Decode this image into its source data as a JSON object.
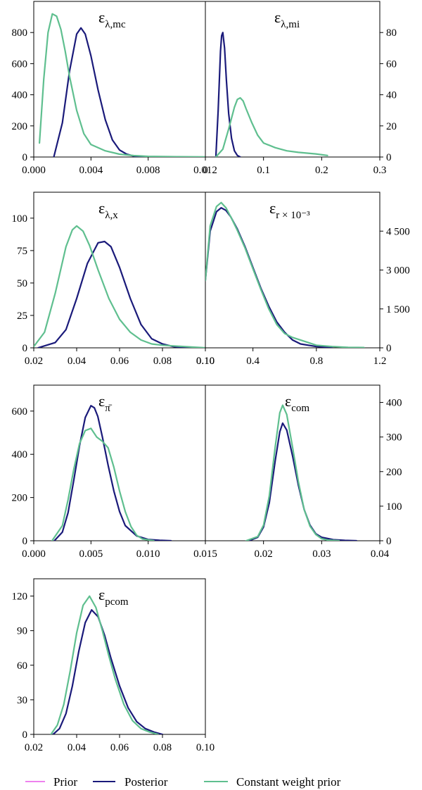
{
  "colors": {
    "prior": "#ee82ee",
    "posterior": "#1a1a7a",
    "constant_weight_prior": "#5fbf8f"
  },
  "legend": [
    {
      "key": "prior",
      "label": "Prior"
    },
    {
      "key": "posterior",
      "label": "Posterior"
    },
    {
      "key": "constant_weight_prior",
      "label": "Constant weight prior"
    }
  ],
  "chart_data": [
    {
      "type": "line",
      "title_base": "ε",
      "title_sub": "λ,mc",
      "xlim": [
        0,
        0.012
      ],
      "ylim": [
        0,
        1000
      ],
      "xticks": [
        0,
        0.004,
        0.008,
        0.012
      ],
      "xtick_labels": [
        "0.000",
        "0.004",
        "0.008",
        "0.012"
      ],
      "yticks": [
        0,
        200,
        400,
        600,
        800
      ],
      "ytick_labels": [
        "0",
        "200",
        "400",
        "600",
        "800"
      ],
      "series": [
        {
          "name": "Posterior",
          "key": "posterior",
          "x": [
            0.0014,
            0.002,
            0.0025,
            0.003,
            0.0033,
            0.0036,
            0.004,
            0.0045,
            0.005,
            0.0055,
            0.006,
            0.0065,
            0.007,
            0.0075,
            0.008
          ],
          "y": [
            0,
            220,
            550,
            790,
            830,
            790,
            650,
            430,
            240,
            110,
            45,
            18,
            6,
            2,
            0
          ]
        },
        {
          "name": "Constant weight prior",
          "key": "constant_weight_prior",
          "x": [
            0.0004,
            0.0007,
            0.001,
            0.0013,
            0.0016,
            0.0019,
            0.0022,
            0.0025,
            0.003,
            0.0035,
            0.004,
            0.005,
            0.006,
            0.007,
            0.008,
            0.01,
            0.012
          ],
          "y": [
            90,
            500,
            800,
            920,
            905,
            820,
            680,
            520,
            300,
            150,
            80,
            40,
            18,
            9,
            4,
            2,
            1
          ]
        }
      ]
    },
    {
      "type": "line",
      "title_base": "ε",
      "title_sub": "λ,mi",
      "xlim": [
        0,
        0.3
      ],
      "ylim": [
        0,
        100
      ],
      "xticks": [
        0,
        0.1,
        0.2,
        0.3
      ],
      "xtick_labels": [
        "0",
        "0.1",
        "0.2",
        "0.3"
      ],
      "yticks": [
        0,
        20,
        40,
        60,
        80
      ],
      "ytick_labels": [
        "0",
        "20",
        "40",
        "60",
        "80"
      ],
      "series": [
        {
          "name": "Posterior",
          "key": "posterior",
          "x": [
            0.018,
            0.022,
            0.026,
            0.028,
            0.03,
            0.033,
            0.036,
            0.04,
            0.045,
            0.05,
            0.055,
            0.06
          ],
          "y": [
            0,
            30,
            68,
            78,
            80,
            70,
            50,
            28,
            12,
            4,
            1,
            0
          ]
        },
        {
          "name": "Constant weight prior",
          "key": "constant_weight_prior",
          "x": [
            0.018,
            0.03,
            0.04,
            0.05,
            0.055,
            0.06,
            0.065,
            0.07,
            0.08,
            0.09,
            0.1,
            0.12,
            0.14,
            0.16,
            0.19,
            0.21
          ],
          "y": [
            0,
            5,
            18,
            32,
            37,
            38,
            36,
            31,
            22,
            14,
            9,
            6,
            4,
            3,
            2,
            1
          ]
        }
      ]
    },
    {
      "type": "line",
      "title_base": "ε",
      "title_sub": "λ,x",
      "xlim": [
        0.02,
        0.1
      ],
      "ylim": [
        0,
        120
      ],
      "xticks": [
        0.02,
        0.04,
        0.06,
        0.08,
        0.1
      ],
      "xtick_labels": [
        "0.02",
        "0.04",
        "0.06",
        "0.08",
        "0.10"
      ],
      "yticks": [
        0,
        25,
        50,
        75,
        100
      ],
      "ytick_labels": [
        "0",
        "25",
        "50",
        "75",
        "100"
      ],
      "series": [
        {
          "name": "Posterior",
          "key": "posterior",
          "x": [
            0.022,
            0.03,
            0.035,
            0.04,
            0.045,
            0.05,
            0.053,
            0.056,
            0.06,
            0.065,
            0.07,
            0.075,
            0.08,
            0.085,
            0.09,
            0.095
          ],
          "y": [
            0,
            4,
            14,
            38,
            65,
            81,
            82,
            78,
            62,
            38,
            18,
            7,
            3,
            1,
            0,
            0
          ]
        },
        {
          "name": "Constant weight prior",
          "key": "constant_weight_prior",
          "x": [
            0.02,
            0.025,
            0.03,
            0.035,
            0.038,
            0.04,
            0.043,
            0.046,
            0.05,
            0.055,
            0.06,
            0.065,
            0.07,
            0.075,
            0.08,
            0.09,
            0.1
          ],
          "y": [
            1,
            12,
            42,
            78,
            91,
            94,
            90,
            79,
            60,
            38,
            22,
            12,
            6,
            3,
            2,
            1,
            0
          ]
        }
      ]
    },
    {
      "type": "line",
      "title_base": "ε",
      "title_sub": "r × 10⁻³",
      "xlim": [
        0.1,
        1.2
      ],
      "ylim": [
        0,
        6000
      ],
      "xticks": [
        0.1,
        0.4,
        0.8,
        1.2
      ],
      "xtick_labels": [
        "0.10",
        "0.4",
        "0.8",
        "1.2"
      ],
      "yticks": [
        0,
        1500,
        3000,
        4500
      ],
      "ytick_labels": [
        "0",
        "1 500",
        "3 000",
        "4 500"
      ],
      "series": [
        {
          "name": "Posterior",
          "key": "posterior",
          "x": [
            0.1,
            0.13,
            0.17,
            0.2,
            0.23,
            0.26,
            0.3,
            0.35,
            0.4,
            0.45,
            0.5,
            0.55,
            0.6,
            0.65,
            0.7,
            0.8,
            0.9
          ],
          "y": [
            2600,
            4500,
            5250,
            5400,
            5300,
            5050,
            4600,
            3900,
            3100,
            2300,
            1600,
            1000,
            600,
            300,
            150,
            50,
            10
          ]
        },
        {
          "name": "Constant weight prior",
          "key": "constant_weight_prior",
          "x": [
            0.1,
            0.13,
            0.17,
            0.2,
            0.23,
            0.26,
            0.3,
            0.35,
            0.4,
            0.45,
            0.5,
            0.55,
            0.6,
            0.65,
            0.7,
            0.8,
            0.9,
            1.0,
            1.1
          ],
          "y": [
            2600,
            4700,
            5450,
            5600,
            5400,
            5050,
            4550,
            3850,
            3050,
            2250,
            1500,
            900,
            550,
            400,
            300,
            100,
            50,
            20,
            10
          ]
        }
      ]
    },
    {
      "type": "line",
      "title_base": "ε",
      "title_sub": "π̄",
      "xlim": [
        0,
        0.015
      ],
      "ylim": [
        0,
        720
      ],
      "xticks": [
        0,
        0.005,
        0.01,
        0.015
      ],
      "xtick_labels": [
        "0.000",
        "0.005",
        "0.010",
        "0.015"
      ],
      "yticks": [
        0,
        200,
        400,
        600
      ],
      "ytick_labels": [
        "0",
        "200",
        "400",
        "600"
      ],
      "series": [
        {
          "name": "Posterior",
          "key": "posterior",
          "x": [
            0.0018,
            0.0025,
            0.003,
            0.0035,
            0.004,
            0.0045,
            0.005,
            0.0053,
            0.0056,
            0.006,
            0.0065,
            0.007,
            0.0075,
            0.008,
            0.009,
            0.01,
            0.011,
            0.012
          ],
          "y": [
            0,
            40,
            130,
            280,
            440,
            570,
            625,
            615,
            575,
            480,
            350,
            230,
            135,
            70,
            22,
            6,
            2,
            0
          ]
        },
        {
          "name": "Constant weight prior",
          "key": "constant_weight_prior",
          "x": [
            0.0016,
            0.0025,
            0.003,
            0.0035,
            0.004,
            0.0045,
            0.005,
            0.0055,
            0.006,
            0.0065,
            0.007,
            0.0075,
            0.008,
            0.0085,
            0.009,
            0.0095,
            0.0105
          ],
          "y": [
            0,
            70,
            190,
            330,
            450,
            510,
            520,
            480,
            460,
            430,
            340,
            230,
            135,
            65,
            25,
            8,
            0
          ]
        }
      ]
    },
    {
      "type": "line",
      "title_base": "ε",
      "title_sub": "com",
      "xlim": [
        0.01,
        0.04
      ],
      "ylim": [
        0,
        450
      ],
      "xticks": [
        0.02,
        0.03,
        0.04
      ],
      "xtick_labels": [
        "0.02",
        "0.03",
        "0.04"
      ],
      "yticks": [
        0,
        100,
        200,
        300,
        400
      ],
      "ytick_labels": [
        "0",
        "100",
        "200",
        "300",
        "400"
      ],
      "series": [
        {
          "name": "Posterior",
          "key": "posterior",
          "x": [
            0.0175,
            0.019,
            0.02,
            0.021,
            0.022,
            0.0228,
            0.0233,
            0.024,
            0.025,
            0.026,
            0.027,
            0.028,
            0.029,
            0.03,
            0.032,
            0.034,
            0.036
          ],
          "y": [
            0,
            10,
            40,
            110,
            230,
            315,
            340,
            320,
            245,
            160,
            90,
            45,
            20,
            10,
            3,
            1,
            0
          ]
        },
        {
          "name": "Constant weight prior",
          "key": "constant_weight_prior",
          "x": [
            0.017,
            0.019,
            0.02,
            0.021,
            0.022,
            0.0228,
            0.0233,
            0.024,
            0.025,
            0.026,
            0.027,
            0.028,
            0.029,
            0.03,
            0.031,
            0.032,
            0.033
          ],
          "y": [
            0,
            12,
            45,
            130,
            270,
            370,
            392,
            365,
            270,
            170,
            90,
            42,
            18,
            6,
            2,
            1,
            0
          ]
        }
      ]
    },
    {
      "type": "line",
      "title_base": "ε",
      "title_sub": "pcom",
      "xlim": [
        0.02,
        0.1
      ],
      "ylim": [
        0,
        135
      ],
      "xticks": [
        0.02,
        0.04,
        0.06,
        0.08,
        0.1
      ],
      "xtick_labels": [
        "0.02",
        "0.04",
        "0.06",
        "0.08",
        "0.10"
      ],
      "yticks": [
        0,
        30,
        60,
        90,
        120
      ],
      "ytick_labels": [
        "0",
        "30",
        "60",
        "90",
        "120"
      ],
      "series": [
        {
          "name": "Posterior",
          "key": "posterior",
          "x": [
            0.029,
            0.032,
            0.035,
            0.038,
            0.041,
            0.044,
            0.047,
            0.05,
            0.053,
            0.056,
            0.06,
            0.064,
            0.068,
            0.072,
            0.076,
            0.08
          ],
          "y": [
            0,
            5,
            18,
            42,
            72,
            97,
            108,
            102,
            86,
            66,
            42,
            23,
            11,
            5,
            2,
            0
          ]
        },
        {
          "name": "Constant weight prior",
          "key": "constant_weight_prior",
          "x": [
            0.028,
            0.031,
            0.034,
            0.037,
            0.04,
            0.043,
            0.046,
            0.049,
            0.052,
            0.055,
            0.058,
            0.062,
            0.066,
            0.07,
            0.074,
            0.078
          ],
          "y": [
            0,
            8,
            26,
            55,
            88,
            112,
            120,
            110,
            90,
            68,
            48,
            26,
            12,
            5,
            2,
            0
          ]
        }
      ]
    }
  ]
}
